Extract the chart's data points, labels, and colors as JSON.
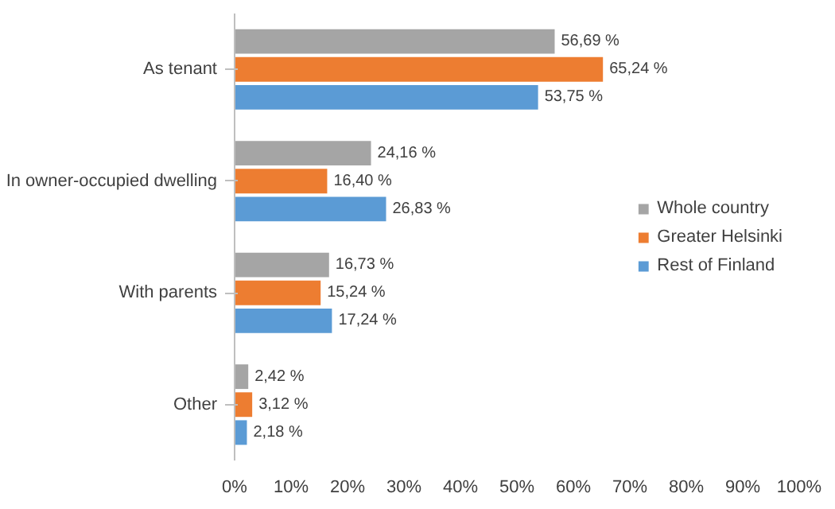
{
  "chart_data": {
    "type": "bar",
    "orientation": "horizontal",
    "categories": [
      "As tenant",
      "In owner-occupied dwelling",
      "With parents",
      "Other"
    ],
    "series": [
      {
        "name": "Whole country",
        "color": "#a5a5a5",
        "values": [
          56.69,
          24.16,
          16.73,
          2.42
        ],
        "value_labels": [
          "56,69 %",
          "24,16 %",
          "16,73 %",
          "2,42 %"
        ]
      },
      {
        "name": "Greater Helsinki",
        "color": "#ed7d31",
        "values": [
          65.24,
          16.4,
          15.24,
          3.12
        ],
        "value_labels": [
          "65,24 %",
          "16,40 %",
          "15,24 %",
          "3,12 %"
        ]
      },
      {
        "name": "Rest of Finland",
        "color": "#5b9bd5",
        "values": [
          53.75,
          26.83,
          17.24,
          2.18
        ],
        "value_labels": [
          "53,75 %",
          "26,83 %",
          "17,24 %",
          "2,18 %"
        ]
      }
    ],
    "xlim": [
      0,
      100
    ],
    "xticks": [
      {
        "value": 0,
        "label": "0%"
      },
      {
        "value": 10,
        "label": "10%"
      },
      {
        "value": 20,
        "label": "20%"
      },
      {
        "value": 30,
        "label": "30%"
      },
      {
        "value": 40,
        "label": "40%"
      },
      {
        "value": 50,
        "label": "50%"
      },
      {
        "value": 60,
        "label": "60%"
      },
      {
        "value": 70,
        "label": "70%"
      },
      {
        "value": 80,
        "label": "80%"
      },
      {
        "value": 90,
        "label": "90%"
      },
      {
        "value": 100,
        "label": "100%"
      }
    ],
    "legend": "right"
  }
}
